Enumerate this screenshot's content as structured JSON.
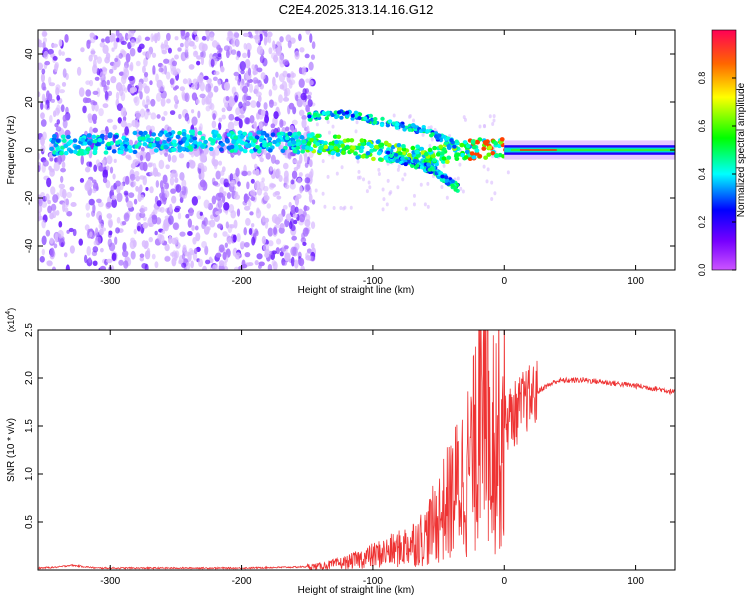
{
  "figure": {
    "title": "C2E4.2025.313.14.16.G12"
  },
  "chart_data": [
    {
      "type": "heatmap",
      "title": "C2E4.2025.313.14.16.G12",
      "xlabel": "Height of straight line (km)",
      "ylabel": "Frequency (Hz)",
      "xlim": [
        -355,
        130
      ],
      "ylim": [
        -50,
        50
      ],
      "xticks": [
        "-300",
        "-200",
        "-100",
        "0",
        "100"
      ],
      "yticks": [
        "-40",
        "-20",
        "0",
        "20",
        "40"
      ],
      "colorbar": {
        "label": "Normalized spectral amplitude",
        "range": [
          0,
          1
        ],
        "ticks": [
          "0.0",
          "0.2",
          "0.4",
          "0.6",
          "0.8"
        ],
        "colors": [
          "#cc55ff",
          "#0000ff",
          "#00ffff",
          "#00ff00",
          "#ffff00",
          "#ff0000"
        ]
      },
      "signal": {
        "description_points_km_hz": [
          {
            "x": -340,
            "y": 2
          },
          {
            "x": -240,
            "y": 4
          },
          {
            "x": -150,
            "y": 3
          },
          {
            "x": -100,
            "y": 0
          },
          {
            "x": -60,
            "y": -3
          },
          {
            "x": -35,
            "y": 0
          },
          {
            "x": 0,
            "y": 1
          },
          {
            "x": 130,
            "y": 0
          }
        ],
        "upper_branch": [
          {
            "x": -150,
            "y": 14
          },
          {
            "x": -120,
            "y": 15
          },
          {
            "x": -60,
            "y": 8
          },
          {
            "x": -35,
            "y": 2
          }
        ],
        "lower_branch": [
          {
            "x": -90,
            "y": -2
          },
          {
            "x": -55,
            "y": -8
          },
          {
            "x": -35,
            "y": -16
          }
        ]
      }
    },
    {
      "type": "line",
      "xlabel": "Height of straight line (km)",
      "ylabel": "SNR (10 * v/v)",
      "yscale_label": "(x10",
      "yscale_exp": "4",
      "yscale_close": ")",
      "xlim": [
        -355,
        130
      ],
      "ylim": [
        0,
        2.5
      ],
      "xticks": [
        "-300",
        "-200",
        "-100",
        "0",
        "100"
      ],
      "yticks": [
        "0.5",
        "1.0",
        "1.5",
        "2.0",
        "2.5"
      ],
      "color": "#ee3333",
      "series": [
        {
          "name": "SNR",
          "x": [
            -355,
            -340,
            -330,
            -310,
            -280,
            -250,
            -200,
            -160,
            -140,
            -120,
            -100,
            -80,
            -60,
            -50,
            -40,
            -30,
            -20,
            -15,
            -10,
            -5,
            0,
            5,
            10,
            15,
            20,
            30,
            40,
            60,
            80,
            100,
            120,
            130
          ],
          "y": [
            0.02,
            0.03,
            0.05,
            0.02,
            0.02,
            0.02,
            0.02,
            0.03,
            0.04,
            0.08,
            0.15,
            0.22,
            0.35,
            0.55,
            0.75,
            1.0,
            1.3,
            1.6,
            1.55,
            1.45,
            1.55,
            1.6,
            1.65,
            1.75,
            1.8,
            1.9,
            1.97,
            1.98,
            1.95,
            1.92,
            1.88,
            1.85
          ]
        }
      ]
    }
  ]
}
